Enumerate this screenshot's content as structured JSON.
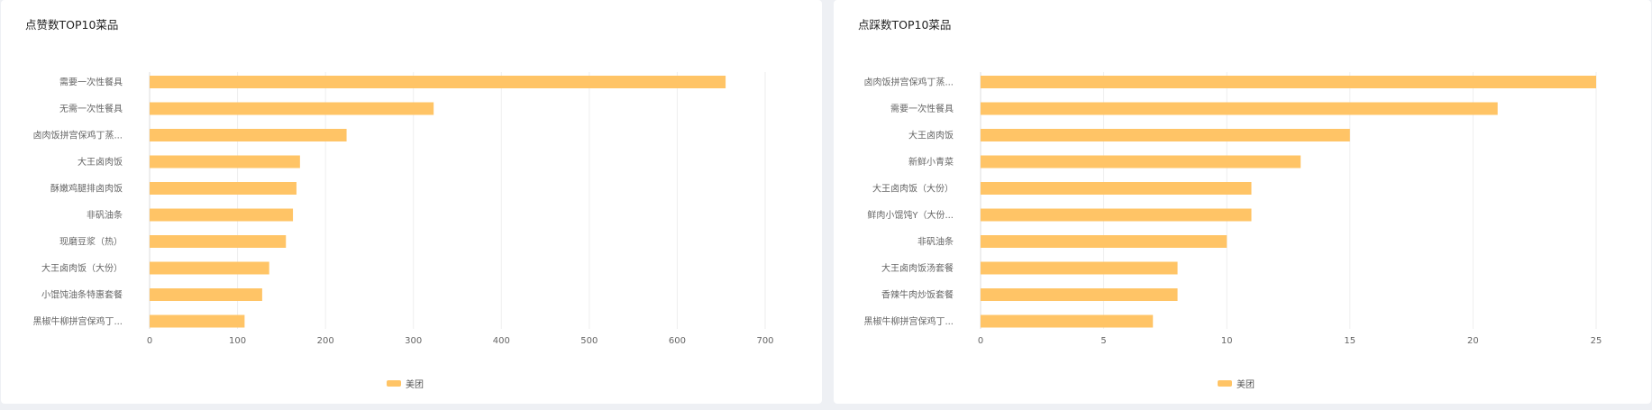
{
  "colors": {
    "bar": "#ffc466",
    "grid": "#eeeeee",
    "axis": "#999999",
    "label": "#666666"
  },
  "chart_data": [
    {
      "type": "bar",
      "orientation": "horizontal",
      "title": "点赞数TOP10菜品",
      "categories": [
        "需要一次性餐具",
        "无需一次性餐具",
        "卤肉饭拼宫保鸡丁蒸...",
        "大王卤肉饭",
        "酥嫩鸡腿排卤肉饭",
        "非矾油条",
        "现磨豆浆（热）",
        "大王卤肉饭（大份）",
        "小馄饨油条特惠套餐",
        "黑椒牛柳拼宫保鸡丁..."
      ],
      "series": [
        {
          "name": "美团",
          "values": [
            655,
            323,
            224,
            171,
            167,
            163,
            155,
            136,
            128,
            108
          ]
        }
      ],
      "xlim": [
        0,
        700
      ],
      "xticks": [
        0,
        100,
        200,
        300,
        400,
        500,
        600,
        700
      ],
      "grid": true,
      "legend": "bottom-center"
    },
    {
      "type": "bar",
      "orientation": "horizontal",
      "title": "点踩数TOP10菜品",
      "categories": [
        "卤肉饭拼宫保鸡丁蒸...",
        "需要一次性餐具",
        "大王卤肉饭",
        "新鲜小青菜",
        "大王卤肉饭（大份）",
        "鲜肉小馄饨Y（大份...",
        "非矾油条",
        "大王卤肉饭汤套餐",
        "香辣牛肉炒饭套餐",
        "黑椒牛柳拼宫保鸡丁..."
      ],
      "series": [
        {
          "name": "美团",
          "values": [
            25,
            21,
            15,
            13,
            11,
            11,
            10,
            8,
            8,
            7
          ]
        }
      ],
      "xlim": [
        0,
        25
      ],
      "xticks": [
        0,
        5,
        10,
        15,
        20,
        25
      ],
      "grid": true,
      "legend": "bottom-center"
    }
  ]
}
